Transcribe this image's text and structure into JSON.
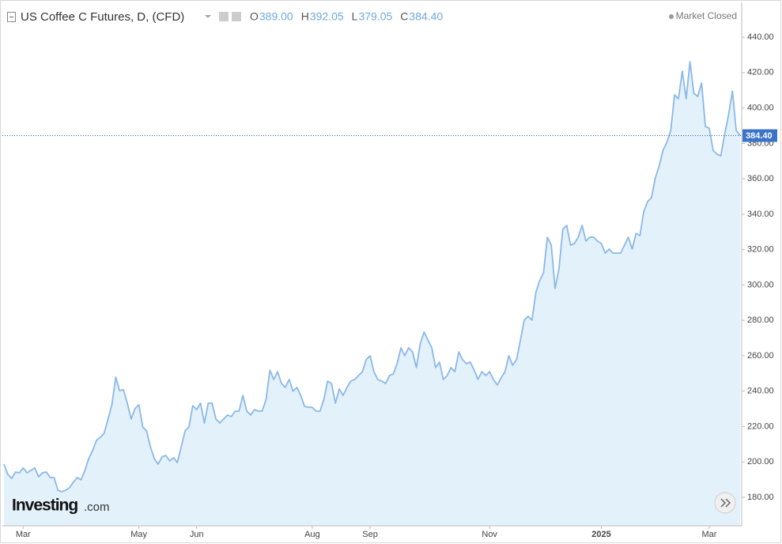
{
  "chart_data": {
    "type": "area-line",
    "title": "US Coffee C Futures, D, (CFD)",
    "ohlc": [
      {
        "key": "O",
        "value": "389.00"
      },
      {
        "key": "H",
        "value": "392.05"
      },
      {
        "key": "L",
        "value": "379.05"
      },
      {
        "key": "C",
        "value": "384.40"
      }
    ],
    "status": "Market Closed",
    "logo": {
      "brand": "Investing",
      "suffix": ".com"
    },
    "series": [
      {
        "name": "US Coffee C Futures",
        "color": "#8ab8e8",
        "fill": "#e3f1fb",
        "values": [
          198.8,
          193,
          190.7,
          194.3,
          193.9,
          196.6,
          193.9,
          195.2,
          196.6,
          191.6,
          193.9,
          194.3,
          191.2,
          191.2,
          184,
          183.2,
          184,
          185.4,
          188.5,
          191.2,
          189.9,
          195.2,
          201.9,
          206.4,
          212.2,
          214,
          216.2,
          224.2,
          232.3,
          247.9,
          240.3,
          240.8,
          233.2,
          224.2,
          230.1,
          232.3,
          219.8,
          217.5,
          208.6,
          201.9,
          198.8,
          202.8,
          203.7,
          200.6,
          202.4,
          199.7,
          208.6,
          217.5,
          219.8,
          231.8,
          229.6,
          233.2,
          222,
          233.2,
          233.2,
          224.2,
          222,
          224.2,
          226.5,
          225.6,
          228.7,
          228.7,
          237.6,
          228.7,
          226.5,
          229.6,
          228.7,
          228.7,
          235.4,
          251.9,
          246.6,
          251,
          244.3,
          242.1,
          246.6,
          239.9,
          242.1,
          237.6,
          231.4,
          230.9,
          230.9,
          228.7,
          228.7,
          235.4,
          245.7,
          244.3,
          233.2,
          241.2,
          237.6,
          242.1,
          245.7,
          246.6,
          248.8,
          251,
          257.8,
          260,
          251,
          246.6,
          245.7,
          244.3,
          248.8,
          249.7,
          255.5,
          264.5,
          260,
          264.5,
          262.2,
          253.3,
          266.7,
          273.4,
          268.9,
          264.5,
          253.3,
          256.4,
          246.6,
          248.8,
          253.3,
          251,
          262.2,
          257.8,
          255.5,
          256.4,
          251.9,
          246.6,
          251,
          248.8,
          251,
          246.6,
          243.5,
          247.5,
          251,
          260,
          254.6,
          257.8,
          268.9,
          280.1,
          282.3,
          280.1,
          295.7,
          302.4,
          306.9,
          327,
          322.5,
          297.9,
          309.1,
          331.5,
          333.7,
          322.5,
          323.4,
          327,
          333.7,
          324.8,
          327,
          327,
          324.8,
          323.4,
          318,
          320.3,
          318,
          318,
          318,
          322.5,
          327,
          320.3,
          329.2,
          327.9,
          341.3,
          347.1,
          349.3,
          360.5,
          367.2,
          376.1,
          380.6,
          387.3,
          407.4,
          405.2,
          420.8,
          405.2,
          426.2,
          408.3,
          406.5,
          414.1,
          389.5,
          388.6,
          376.1,
          373.9,
          373,
          385.1,
          396.2,
          409.6,
          387.3,
          384.4
        ]
      }
    ],
    "last_price": {
      "value": 384.4,
      "label": "384.40"
    },
    "ylim": [
      163.9,
      458.8
    ],
    "yticks": [
      {
        "value": 180,
        "label": "180.00"
      },
      {
        "value": 200,
        "label": "200.00"
      },
      {
        "value": 220,
        "label": "220.00"
      },
      {
        "value": 240,
        "label": "240.00"
      },
      {
        "value": 260,
        "label": "260.00"
      },
      {
        "value": 280,
        "label": "280.00"
      },
      {
        "value": 300,
        "label": "300.00"
      },
      {
        "value": 320,
        "label": "320.00"
      },
      {
        "value": 340,
        "label": "340.00"
      },
      {
        "value": 360,
        "label": "360.00"
      },
      {
        "value": 380,
        "label": "380.00"
      },
      {
        "value": 400,
        "label": "400.00"
      },
      {
        "value": 420,
        "label": "420.00"
      },
      {
        "value": 440,
        "label": "440.00"
      }
    ],
    "xticks": [
      {
        "value": 5,
        "label": "Mar"
      },
      {
        "value": 35,
        "label": "May"
      },
      {
        "value": 50,
        "label": "Jun"
      },
      {
        "value": 80,
        "label": "Aug"
      },
      {
        "value": 95,
        "label": "Sep"
      },
      {
        "value": 126,
        "label": "Nov"
      },
      {
        "value": 155,
        "label": "2025"
      },
      {
        "value": 183,
        "label": "Mar"
      }
    ]
  }
}
